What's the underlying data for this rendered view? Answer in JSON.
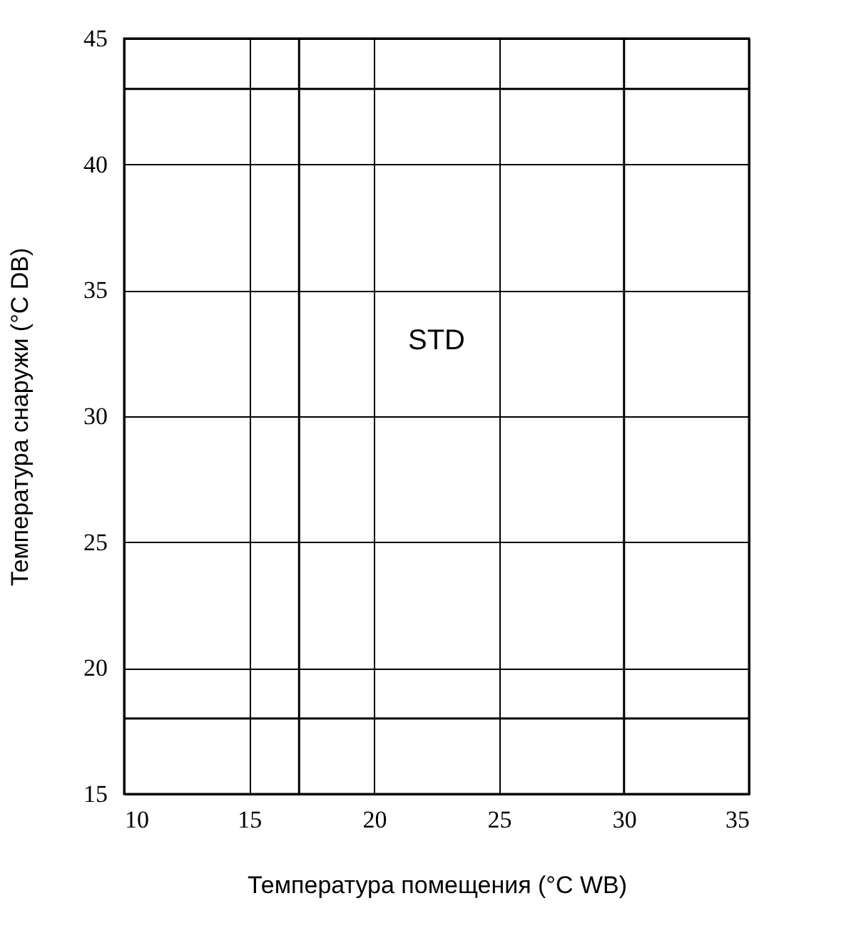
{
  "chart_data": {
    "type": "line",
    "xlabel": "Температура помещения (°C WB)",
    "ylabel": "Температура снаружи (°C DB)",
    "xlim": [
      10,
      35
    ],
    "ylim": [
      15,
      45
    ],
    "xticks": [
      10,
      15,
      20,
      25,
      30,
      35
    ],
    "yticks": [
      15,
      20,
      25,
      30,
      35,
      40,
      45
    ],
    "grid": true,
    "marker": "none",
    "series": [
      {
        "color": "#000000",
        "x": [
          10,
          35
        ],
        "values": [
          43,
          43
        ]
      },
      {
        "color": "#000000",
        "x": [
          10,
          35
        ],
        "values": [
          18,
          18
        ]
      },
      {
        "color": "#000000",
        "x": [
          17,
          17
        ],
        "values": [
          15,
          45
        ]
      },
      {
        "color": "#000000",
        "x": [
          30,
          30
        ],
        "values": [
          15,
          45
        ]
      }
    ],
    "annotations": [
      "STD"
    ]
  }
}
